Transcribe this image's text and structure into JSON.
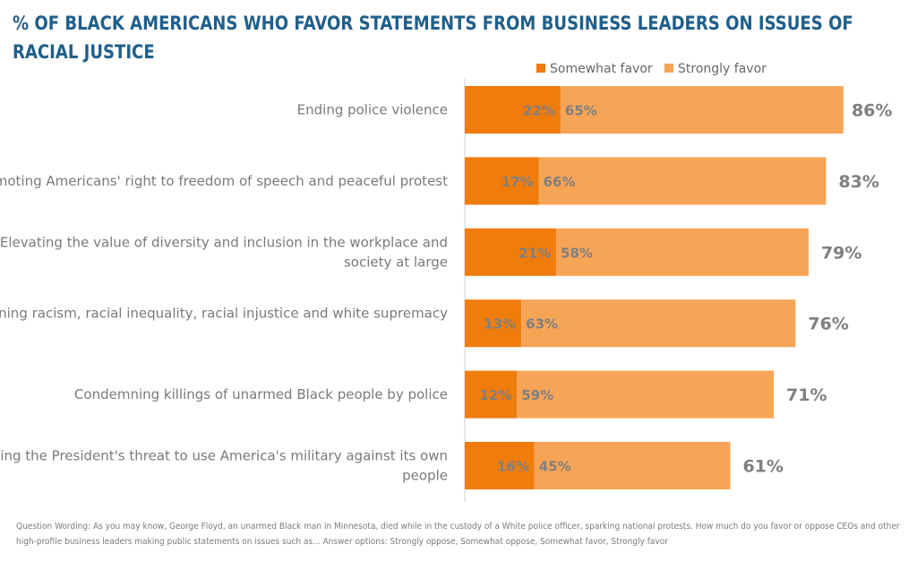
{
  "title": "% OF BLACK AMERICANS WHO FAVOR STATEMENTS FROM BUSINESS LEADERS ON ISSUES OF RACIAL JUSTICE",
  "footnote": "Question Wording: As you may know, George Floyd, an unarmed Black man in Minnesota, died while in the custody of a White police officer, sparking national protests.  How much do you favor or oppose CEOs and other high-profile business leaders making public statements on issues such as...  Answer options: Strongly oppose, Somewhat oppose, Somewhat favor, Strongly favor",
  "chart_data": {
    "type": "bar",
    "orientation": "horizontal",
    "stacked": true,
    "categories": [
      "Ending police violence",
      "Promoting Americans' right to freedom of speech and peaceful protest",
      "Elevating the value of diversity and inclusion in the workplace and society at large",
      "Condemning racism, racial inequality, racial injustice and white supremacy",
      "Condemning killings of unarmed Black people by police",
      "Denouncing the President's threat to use America's military against its own people"
    ],
    "series": [
      {
        "name": "Somewhat favor",
        "color": "#f07c0c",
        "values": [
          22,
          17,
          21,
          13,
          12,
          16
        ],
        "labels": [
          "22%",
          "17%",
          "21%",
          "13%",
          "12%",
          "16%"
        ]
      },
      {
        "name": "Strongly favor",
        "color": "#f6a456",
        "values": [
          65,
          66,
          58,
          63,
          59,
          45
        ],
        "labels": [
          "65%",
          "66%",
          "58%",
          "63%",
          "59%",
          "45%"
        ]
      }
    ],
    "totals": [
      86,
      83,
      79,
      76,
      71,
      61
    ],
    "total_labels": [
      "86%",
      "83%",
      "79%",
      "76%",
      "71%",
      "61%"
    ],
    "legend_position": "top",
    "xlim": [
      0,
      100
    ],
    "grid": false
  }
}
